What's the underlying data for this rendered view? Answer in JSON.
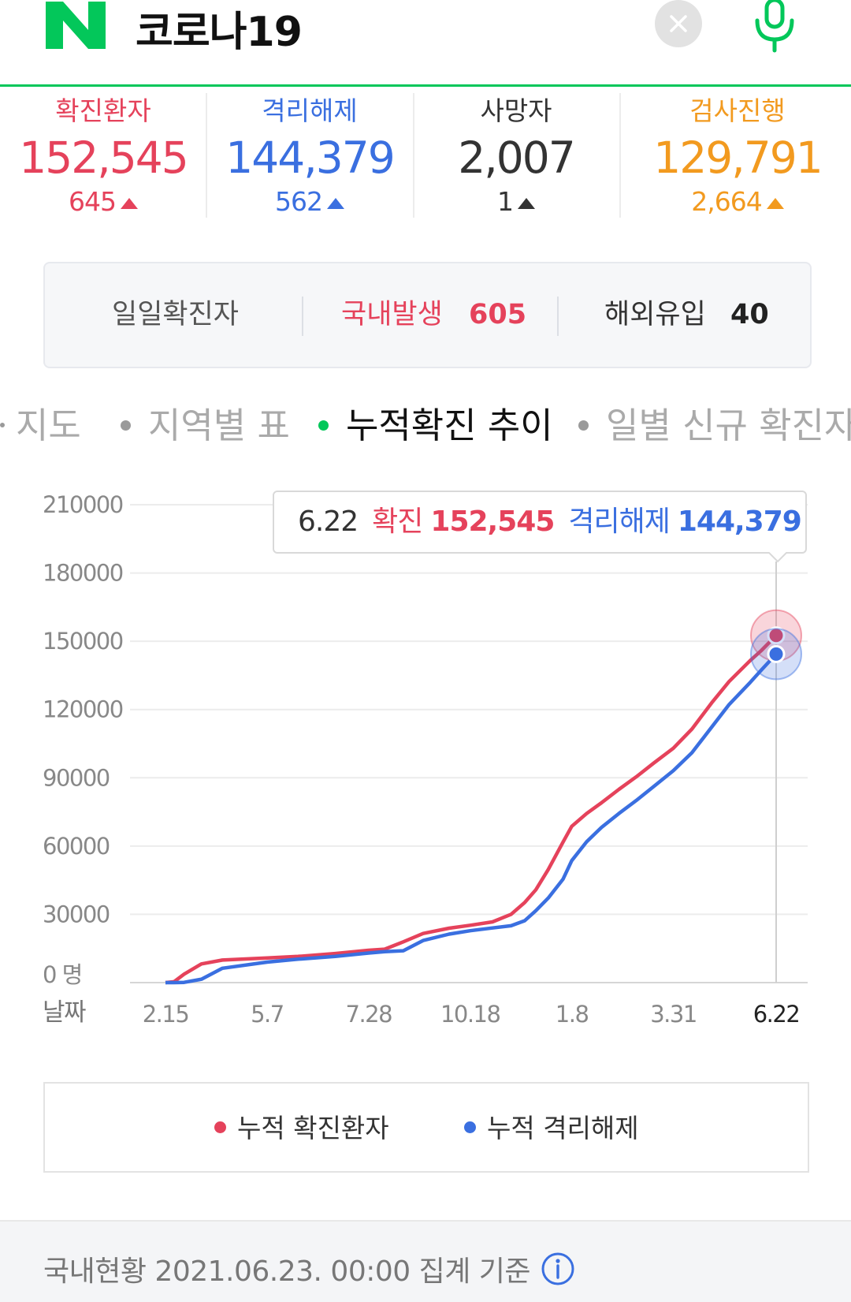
{
  "header": {
    "query": "코로나19",
    "clear_icon": "close-icon",
    "mic_icon": "microphone-icon",
    "brand_color": "#03c75a"
  },
  "stats": [
    {
      "label": "확진환자",
      "value": "152,545",
      "delta": "645",
      "color": "#e5425b"
    },
    {
      "label": "격리해제",
      "value": "144,379",
      "delta": "562",
      "color": "#3a6fe0"
    },
    {
      "label": "사망자",
      "value": "2,007",
      "delta": "1",
      "color": "#333333"
    },
    {
      "label": "검사진행",
      "value": "129,791",
      "delta": "2,664",
      "color": "#f29a1f"
    }
  ],
  "daily": {
    "label": "일일확진자",
    "domestic_label": "국내발생",
    "domestic_value": "605",
    "overseas_label": "해외유입",
    "overseas_value": "40"
  },
  "tabs": [
    {
      "label": "지도",
      "active": false
    },
    {
      "label": "지역별 표",
      "active": false
    },
    {
      "label": "누적확진 추이",
      "active": true
    },
    {
      "label": "일별 신규 확진자",
      "active": false
    }
  ],
  "tooltip": {
    "date": "6.22",
    "confirmed_label": "확진",
    "confirmed_value": "152,545",
    "released_label": "격리해제",
    "released_value": "144,379"
  },
  "chart_data": {
    "type": "line",
    "y_unit_label": "0 명",
    "x_axis_label": "날짜",
    "yticks": [
      0,
      30000,
      60000,
      90000,
      120000,
      150000,
      180000,
      210000
    ],
    "ylim": [
      0,
      210000
    ],
    "xticks": [
      "2.15",
      "5.7",
      "7.28",
      "10.18",
      "1.8",
      "3.31",
      "6.22"
    ],
    "grid": true,
    "legend_position": "bottom",
    "x": [
      "2020-02-15",
      "2020-02-22",
      "2020-03-01",
      "2020-03-15",
      "2020-04-01",
      "2020-05-07",
      "2020-06-01",
      "2020-07-01",
      "2020-07-28",
      "2020-08-10",
      "2020-08-25",
      "2020-09-10",
      "2020-10-01",
      "2020-10-18",
      "2020-11-05",
      "2020-11-20",
      "2020-12-01",
      "2020-12-10",
      "2020-12-20",
      "2021-01-01",
      "2021-01-08",
      "2021-01-20",
      "2021-02-01",
      "2021-02-15",
      "2021-03-01",
      "2021-03-15",
      "2021-03-31",
      "2021-04-15",
      "2021-05-01",
      "2021-05-15",
      "2021-06-01",
      "2021-06-10",
      "2021-06-22"
    ],
    "series": [
      {
        "name": "누적 확진환자",
        "color": "#e5425b",
        "values": [
          0,
          400,
          3700,
          8200,
          9900,
          10800,
          11500,
          12800,
          14200,
          14700,
          17900,
          21600,
          23900,
          25200,
          26700,
          30000,
          35200,
          40800,
          49700,
          61800,
          68700,
          74300,
          79000,
          84900,
          90400,
          96400,
          103000,
          111400,
          123000,
          132300,
          141500,
          145900,
          152545
        ]
      },
      {
        "name": "누적 격리해제",
        "color": "#3a6fe0",
        "values": [
          0,
          0,
          100,
          1500,
          6300,
          9000,
          10300,
          11500,
          13000,
          13600,
          14000,
          18500,
          21300,
          22800,
          24000,
          25000,
          27200,
          31600,
          37200,
          45500,
          53600,
          61900,
          68200,
          74300,
          80000,
          86100,
          93100,
          101000,
          112300,
          122200,
          131900,
          137300,
          144379
        ]
      }
    ]
  },
  "footer": {
    "text": "국내현황 2021.06.23. 00:00 집계 기준",
    "info_icon": "info-icon"
  }
}
